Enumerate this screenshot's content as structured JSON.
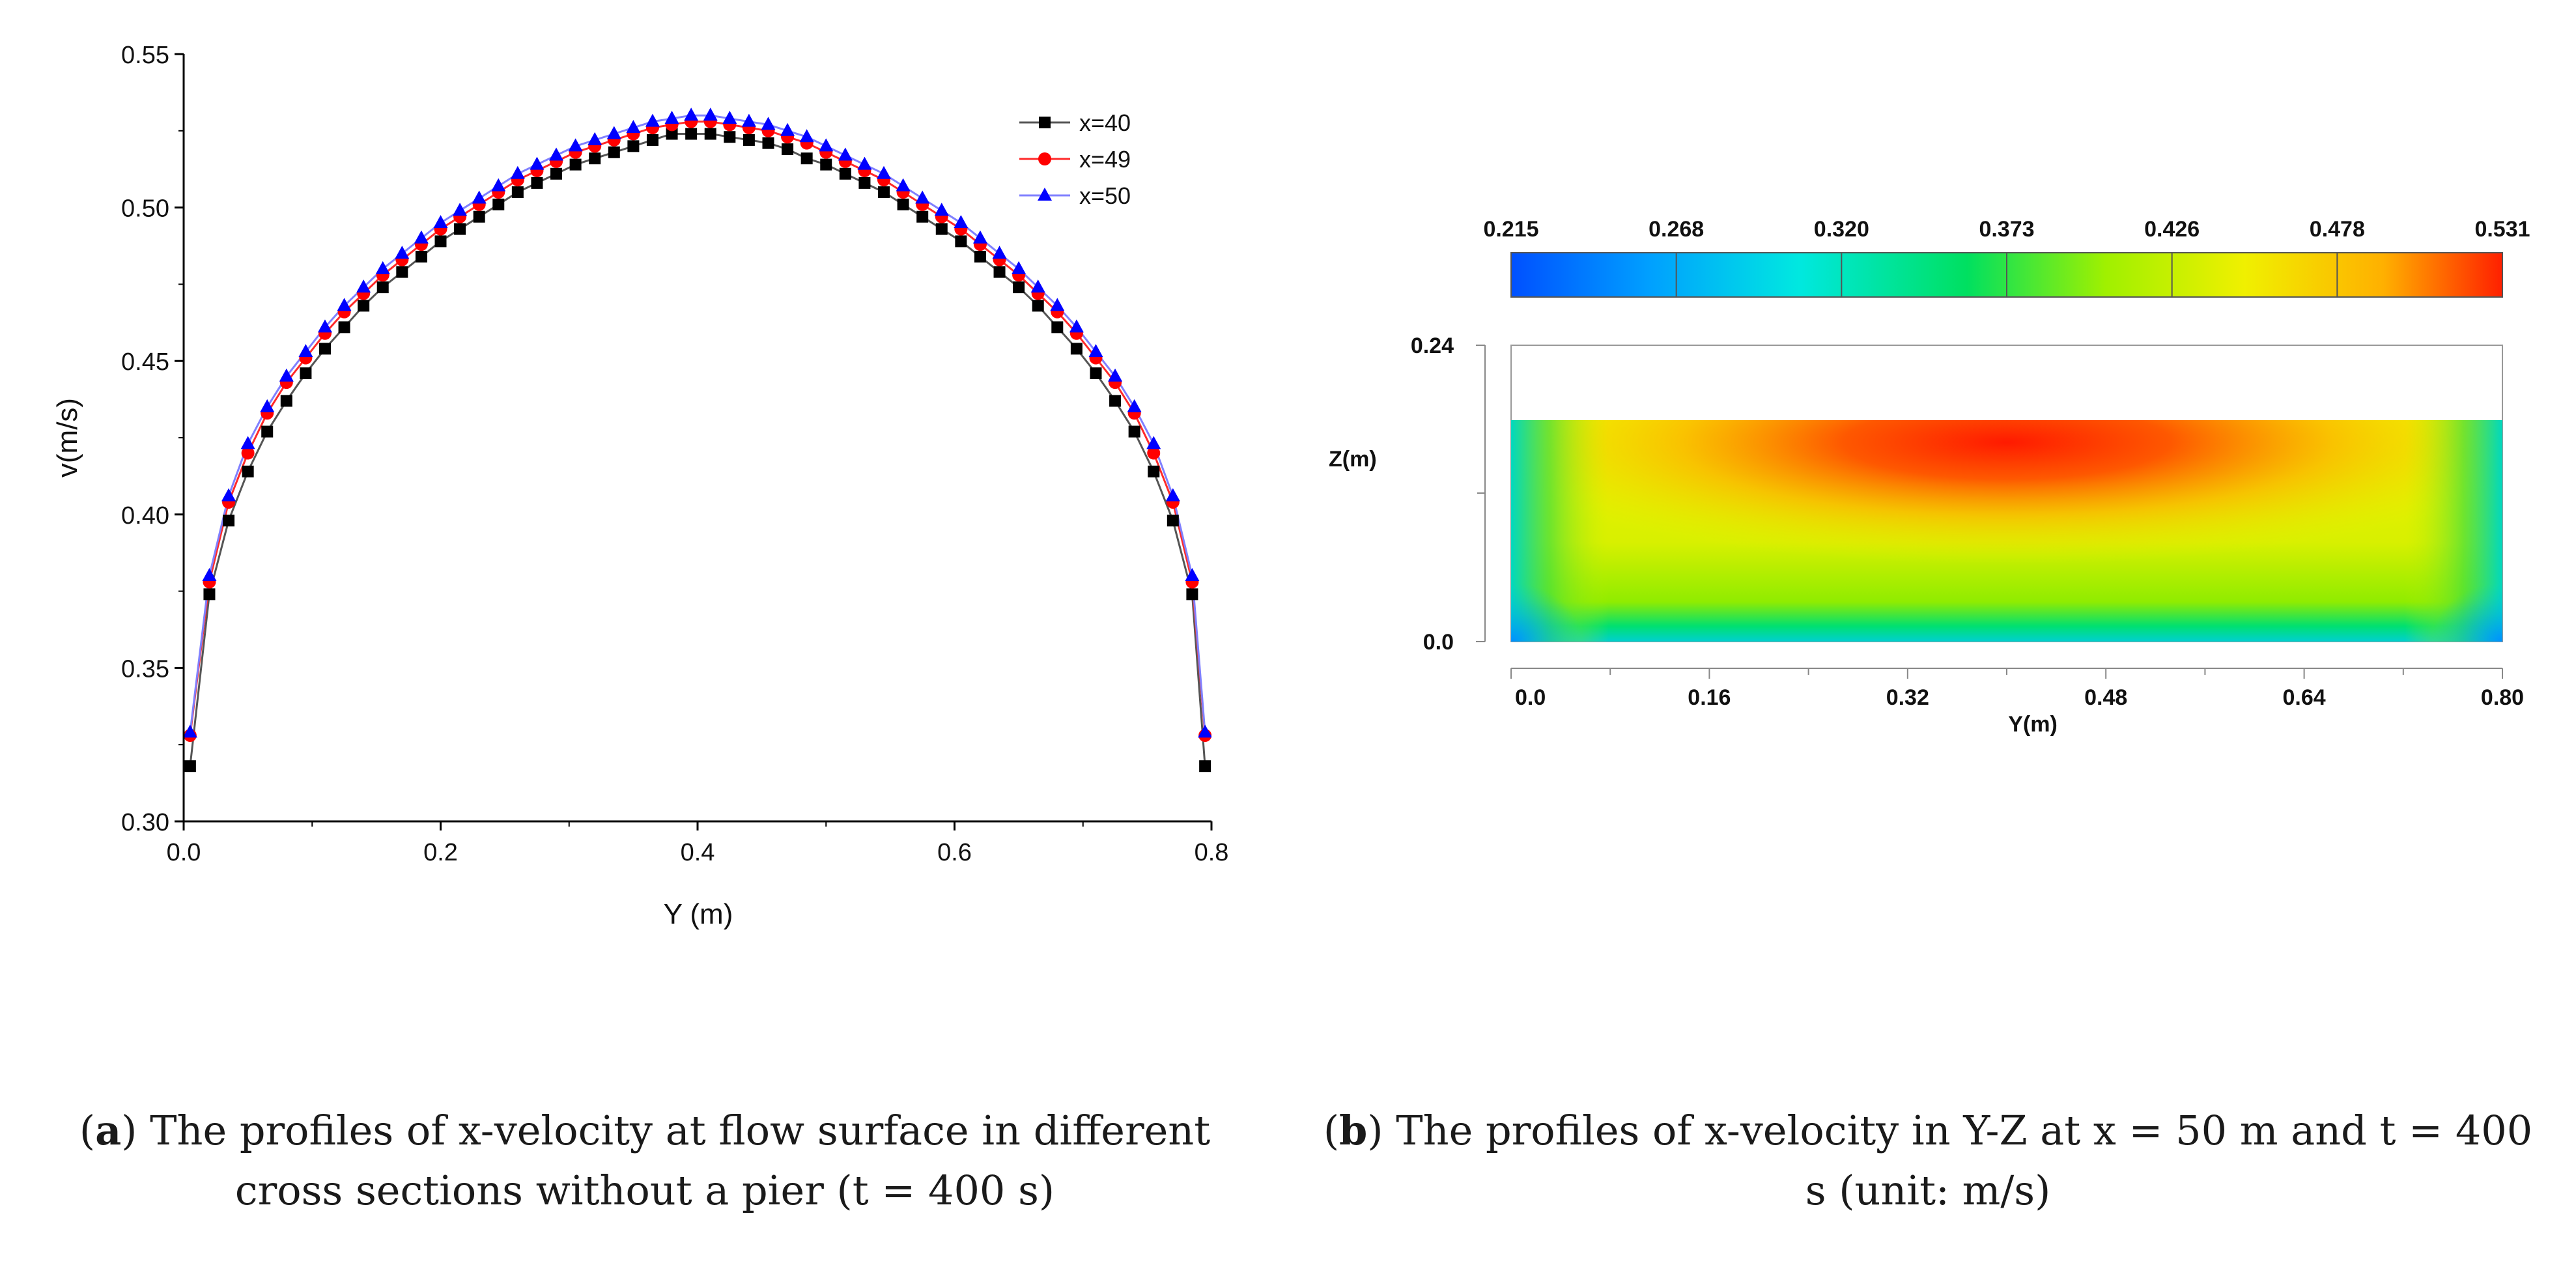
{
  "chart_data": [
    {
      "type": "line",
      "xlabel": "Y (m)",
      "ylabel": "v(m/s)",
      "xlim": [
        0.0,
        0.8
      ],
      "ylim": [
        0.3,
        0.55
      ],
      "xticks": [
        "0.0",
        "0.2",
        "0.4",
        "0.6",
        "0.8"
      ],
      "yticks": [
        "0.30",
        "0.35",
        "0.40",
        "0.45",
        "0.50",
        "0.55"
      ],
      "legend_position": "top-right",
      "x": [
        0.005,
        0.02,
        0.035,
        0.05,
        0.065,
        0.08,
        0.095,
        0.11,
        0.125,
        0.14,
        0.155,
        0.17,
        0.185,
        0.2,
        0.215,
        0.23,
        0.245,
        0.26,
        0.275,
        0.29,
        0.305,
        0.32,
        0.335,
        0.35,
        0.365,
        0.38,
        0.395,
        0.41,
        0.425,
        0.44,
        0.455,
        0.47,
        0.485,
        0.5,
        0.515,
        0.53,
        0.545,
        0.56,
        0.575,
        0.59,
        0.605,
        0.62,
        0.635,
        0.65,
        0.665,
        0.68,
        0.695,
        0.71,
        0.725,
        0.74,
        0.755,
        0.77,
        0.785,
        0.795
      ],
      "series": [
        {
          "name": "x=40",
          "marker": "square",
          "color": "#000000",
          "line_color": "#555555",
          "values": [
            0.318,
            0.374,
            0.398,
            0.414,
            0.427,
            0.437,
            0.446,
            0.454,
            0.461,
            0.468,
            0.474,
            0.479,
            0.484,
            0.489,
            0.493,
            0.497,
            0.501,
            0.505,
            0.508,
            0.511,
            0.514,
            0.516,
            0.518,
            0.52,
            0.522,
            0.524,
            0.524,
            0.524,
            0.523,
            0.522,
            0.521,
            0.519,
            0.516,
            0.514,
            0.511,
            0.508,
            0.505,
            0.501,
            0.497,
            0.493,
            0.489,
            0.484,
            0.479,
            0.474,
            0.468,
            0.461,
            0.454,
            0.446,
            0.437,
            0.427,
            0.414,
            0.398,
            0.374,
            0.318
          ]
        },
        {
          "name": "x=49",
          "marker": "circle",
          "color": "#ff0000",
          "line_color": "#ff2a2a",
          "values": [
            0.328,
            0.378,
            0.404,
            0.42,
            0.433,
            0.443,
            0.451,
            0.459,
            0.466,
            0.472,
            0.478,
            0.483,
            0.488,
            0.493,
            0.497,
            0.501,
            0.505,
            0.509,
            0.512,
            0.515,
            0.518,
            0.52,
            0.522,
            0.524,
            0.526,
            0.527,
            0.528,
            0.528,
            0.527,
            0.526,
            0.525,
            0.523,
            0.521,
            0.518,
            0.515,
            0.512,
            0.509,
            0.505,
            0.501,
            0.497,
            0.493,
            0.488,
            0.483,
            0.478,
            0.472,
            0.466,
            0.459,
            0.451,
            0.443,
            0.433,
            0.42,
            0.404,
            0.378,
            0.328
          ]
        },
        {
          "name": "x=50",
          "marker": "triangle",
          "color": "#0000ff",
          "line_color": "#8080ff",
          "values": [
            0.329,
            0.38,
            0.406,
            0.423,
            0.435,
            0.445,
            0.453,
            0.461,
            0.468,
            0.474,
            0.48,
            0.485,
            0.49,
            0.495,
            0.499,
            0.503,
            0.507,
            0.511,
            0.514,
            0.517,
            0.52,
            0.522,
            0.524,
            0.526,
            0.528,
            0.529,
            0.53,
            0.53,
            0.529,
            0.528,
            0.527,
            0.525,
            0.523,
            0.52,
            0.517,
            0.514,
            0.511,
            0.507,
            0.503,
            0.499,
            0.495,
            0.49,
            0.485,
            0.48,
            0.474,
            0.468,
            0.461,
            0.453,
            0.445,
            0.435,
            0.423,
            0.406,
            0.38,
            0.329
          ]
        }
      ]
    },
    {
      "type": "heatmap",
      "xlabel": "Y(m)",
      "ylabel": "Z(m)",
      "xlim": [
        0.0,
        0.8
      ],
      "ylim": [
        0.0,
        0.24
      ],
      "xticks": [
        "0.0",
        "0.16",
        "0.32",
        "0.48",
        "0.64",
        "0.80"
      ],
      "yticks": [
        "0.0",
        "0.24"
      ],
      "water_depth_fraction": 0.75,
      "colorbar_ticks": [
        "0.215",
        "0.268",
        "0.320",
        "0.373",
        "0.426",
        "0.478",
        "0.531"
      ],
      "colorbar_range": [
        0.215,
        0.531
      ],
      "max_velocity_center_y": 0.4,
      "colormap": [
        "#0050ff",
        "#00a0ff",
        "#00e8e0",
        "#00e060",
        "#a0f000",
        "#f0f000",
        "#ffb000",
        "#ff2000"
      ]
    }
  ],
  "captions": {
    "a_label": "a",
    "a_text": "The profiles of x-velocity at flow surface in different cross sections without a pier (t = 400 s)",
    "b_label": "b",
    "b_text": "The profiles of x-velocity in Y-Z at x = 50 m and t = 400 s (unit: m/s)"
  }
}
